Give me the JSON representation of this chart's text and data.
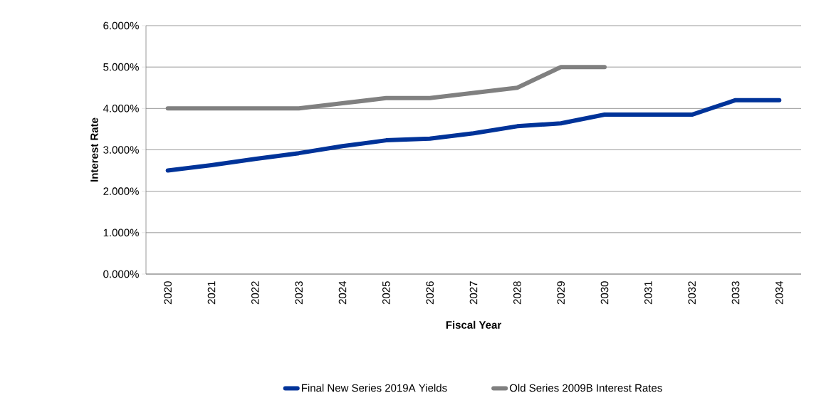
{
  "chart_data": {
    "type": "line",
    "xlabel": "Fiscal Year",
    "ylabel": "Interest Rate",
    "categories": [
      "2020",
      "2021",
      "2022",
      "2023",
      "2024",
      "2025",
      "2026",
      "2027",
      "2028",
      "2029",
      "2030",
      "2031",
      "2032",
      "2033",
      "2034"
    ],
    "series": [
      {
        "name": "Final New Series 2019A Yields",
        "color": "#003399",
        "values": [
          2.5,
          2.63,
          2.78,
          2.92,
          3.09,
          3.23,
          3.27,
          3.4,
          3.57,
          3.64,
          3.85,
          3.85,
          3.85,
          4.2,
          4.2
        ]
      },
      {
        "name": "Old Series 2009B Interest Rates",
        "color": "#808080",
        "values": [
          4.0,
          4.0,
          4.0,
          4.0,
          4.125,
          4.25,
          4.25,
          4.375,
          4.5,
          5.0,
          5.0,
          null,
          null,
          null,
          null
        ]
      }
    ],
    "ylim": [
      0,
      6
    ],
    "yticks": [
      {
        "value": 0,
        "label": "0.000%"
      },
      {
        "value": 1,
        "label": "1.000%"
      },
      {
        "value": 2,
        "label": "2.000%"
      },
      {
        "value": 3,
        "label": "3.000%"
      },
      {
        "value": 4,
        "label": "4.000%"
      },
      {
        "value": 5,
        "label": "5.000%"
      },
      {
        "value": 6,
        "label": "6.000%"
      }
    ],
    "grid": "y",
    "legend": "bottom",
    "marker": "none",
    "line_style": "solid"
  }
}
